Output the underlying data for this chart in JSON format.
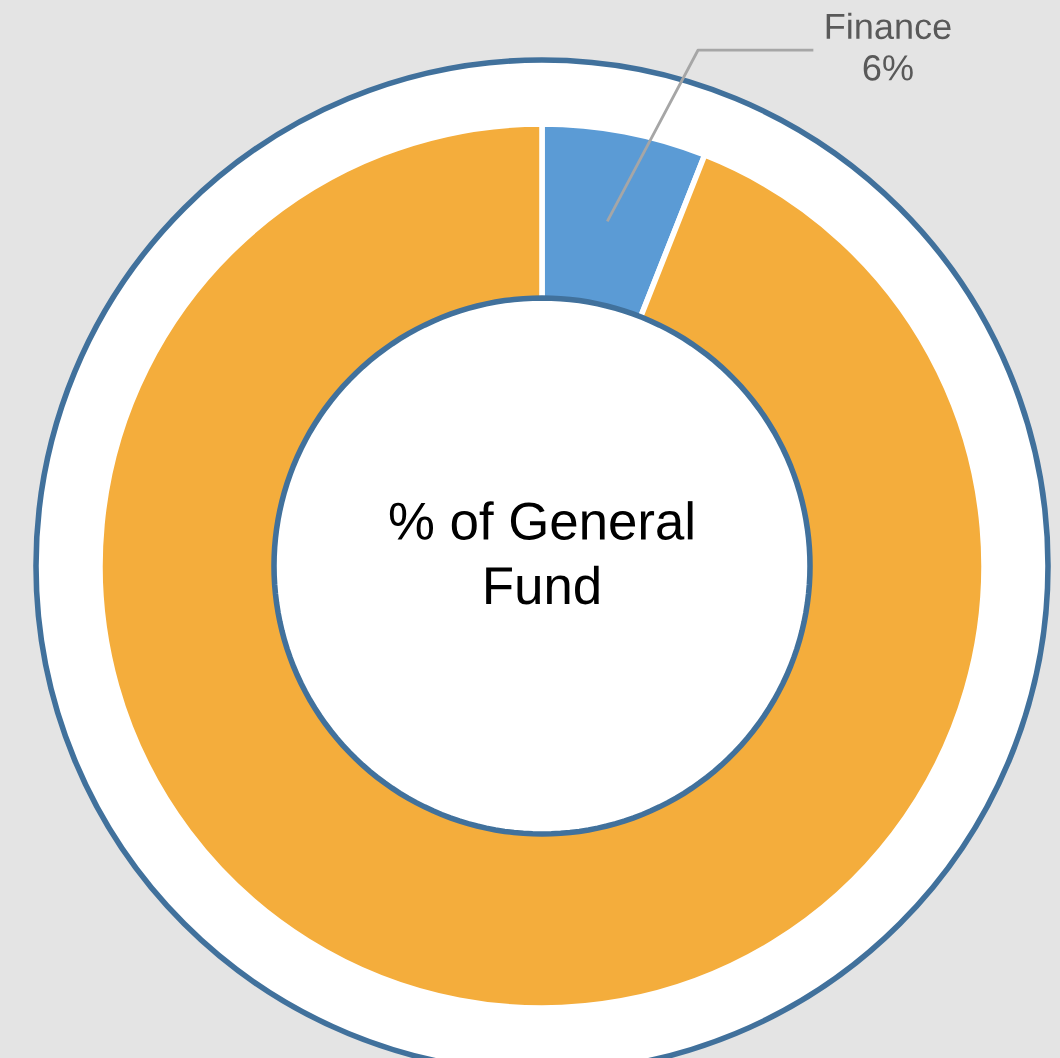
{
  "chart_data": {
    "type": "donut",
    "title": "% of General Fund",
    "categories": [
      "Finance",
      null
    ],
    "values": [
      6,
      94
    ],
    "colors": [
      "#5b9bd5",
      "#f4ad3c"
    ],
    "value_labels": [
      "6%",
      null
    ],
    "legend": false
  }
}
